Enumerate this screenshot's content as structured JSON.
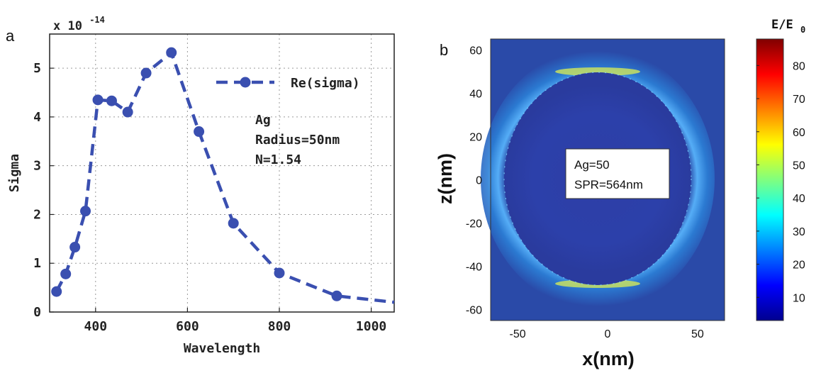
{
  "panel_a": {
    "label": "a",
    "multiplier_text": "x 10",
    "multiplier_exp": "-14",
    "annotation": [
      "Ag",
      "Radius=50nm",
      "N=1.54"
    ],
    "chart_data": {
      "type": "line",
      "xlabel": "Wavelength",
      "ylabel": "Sigma",
      "xlim": [
        300,
        1050
      ],
      "ylim": [
        0,
        5.7
      ],
      "xticks": [
        400,
        600,
        800,
        1000
      ],
      "yticks": [
        0,
        1,
        2,
        3,
        4,
        5
      ],
      "grid": true,
      "legend_position": "top-right",
      "series": [
        {
          "name": "Re(sigma)",
          "color": "#3a4fb0",
          "style": "dashed",
          "marker": "circle",
          "x": [
            315,
            335,
            355,
            378,
            405,
            435,
            470,
            510,
            565,
            625,
            700,
            800,
            925
          ],
          "y": [
            0.42,
            0.78,
            1.33,
            2.07,
            4.35,
            4.33,
            4.1,
            4.9,
            5.32,
            3.7,
            1.82,
            0.8,
            0.33
          ]
        }
      ],
      "line_tail": {
        "x": 1050,
        "y": 0.2
      }
    }
  },
  "panel_b": {
    "label": "b",
    "annotation_lines": [
      "Ag=50",
      "SPR=564nm"
    ],
    "chart_data": {
      "type": "heatmap",
      "xlabel": "x(nm)",
      "ylabel": "z(nm)",
      "xlim": [
        -65,
        65
      ],
      "ylim": [
        -65,
        65
      ],
      "xticks": [
        -50,
        0,
        50
      ],
      "yticks": [
        60,
        40,
        20,
        0,
        -20,
        -40,
        -60
      ],
      "particle_radius_nm": 50,
      "colorbar": {
        "title": "E/E",
        "title_sub": "0",
        "min": 3,
        "max": 88,
        "ticks": [
          80,
          70,
          60,
          50,
          40,
          30,
          20,
          10
        ]
      }
    }
  }
}
